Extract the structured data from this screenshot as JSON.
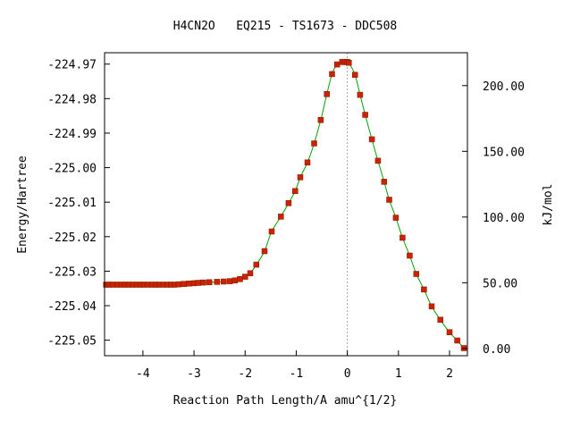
{
  "chart_data": {
    "type": "line",
    "title": "H4CN2O   EQ215 - TS1673 - DDC508",
    "xlabel": "Reaction Path Length/A amu^{1/2}",
    "ylabel": "Energy/Hartree",
    "y2label": "kJ/mol",
    "xlim": [
      -4.75,
      2.35
    ],
    "ylim": [
      -225.0545,
      -224.9667
    ],
    "xticks": [
      -4,
      -3,
      -2,
      -1,
      0,
      1,
      2
    ],
    "xtick_labels": [
      "-4",
      "-3",
      "-2",
      "-1",
      "0",
      "1",
      "2"
    ],
    "yticks": [
      -224.97,
      -224.98,
      -224.99,
      -225.0,
      -225.01,
      -225.02,
      -225.03,
      -225.04,
      -225.05
    ],
    "ytick_labels": [
      "-224.97",
      "-224.98",
      "-224.99",
      "-225.00",
      "-225.01",
      "-225.02",
      "-225.03",
      "-225.04",
      "-225.05"
    ],
    "y2ticks": [
      0,
      50,
      100,
      150,
      200
    ],
    "y2tick_labels": [
      "0.00",
      "50.00",
      "100.00",
      "150.00",
      "200.00"
    ],
    "y2_zero_hartree": -225.0524,
    "hartree_to_kjmol": 2625.5,
    "ts_marker_x": 0,
    "grid": false,
    "legend": "none",
    "colors": {
      "line": "#00a000",
      "marker": "#cc2200",
      "ts_line": "#a0a0a0",
      "axes": "#000000"
    },
    "series": [
      {
        "x": [
          -4.72,
          -4.65,
          -4.58,
          -4.5,
          -4.42,
          -4.35,
          -4.28,
          -4.2,
          -4.12,
          -4.05,
          -3.98,
          -3.9,
          -3.82,
          -3.75,
          -3.68,
          -3.6,
          -3.52,
          -3.45,
          -3.38,
          -3.3,
          -3.2,
          -3.1,
          -3.0,
          -2.92,
          -2.82,
          -2.7,
          -2.55,
          -2.42,
          -2.3,
          -2.2,
          -2.1,
          -2.0,
          -1.9,
          -1.78,
          -1.62,
          -1.48,
          -1.3,
          -1.15,
          -1.02,
          -0.92,
          -0.78,
          -0.65,
          -0.52,
          -0.4,
          -0.3,
          -0.2,
          -0.1,
          -0.05,
          0.0,
          0.03,
          0.15,
          0.25,
          0.35,
          0.48,
          0.6,
          0.72,
          0.82,
          0.95,
          1.08,
          1.22,
          1.35,
          1.5,
          1.65,
          1.82,
          2.0,
          2.15,
          2.28
        ],
        "y": [
          -225.0339,
          -225.0339,
          -225.0339,
          -225.0339,
          -225.0339,
          -225.0339,
          -225.0339,
          -225.0339,
          -225.0339,
          -225.0339,
          -225.0339,
          -225.0339,
          -225.0339,
          -225.0339,
          -225.0339,
          -225.0339,
          -225.0339,
          -225.0339,
          -225.0339,
          -225.0338,
          -225.0337,
          -225.0336,
          -225.0335,
          -225.0334,
          -225.0333,
          -225.0332,
          -225.0331,
          -225.033,
          -225.0329,
          -225.0327,
          -225.0323,
          -225.0316,
          -225.0306,
          -225.0281,
          -225.0242,
          -225.0185,
          -225.0142,
          -225.0103,
          -225.0068,
          -225.0028,
          -224.9985,
          -224.993,
          -224.9862,
          -224.9787,
          -224.9729,
          -224.9701,
          -224.9694,
          -224.9694,
          -224.9694,
          -224.9696,
          -224.9731,
          -224.9789,
          -224.9847,
          -224.9918,
          -224.998,
          -225.0041,
          -225.0093,
          -225.0145,
          -225.0203,
          -225.0255,
          -225.0308,
          -225.0353,
          -225.0402,
          -225.0441,
          -225.0477,
          -225.0501,
          -225.0523
        ]
      }
    ]
  }
}
